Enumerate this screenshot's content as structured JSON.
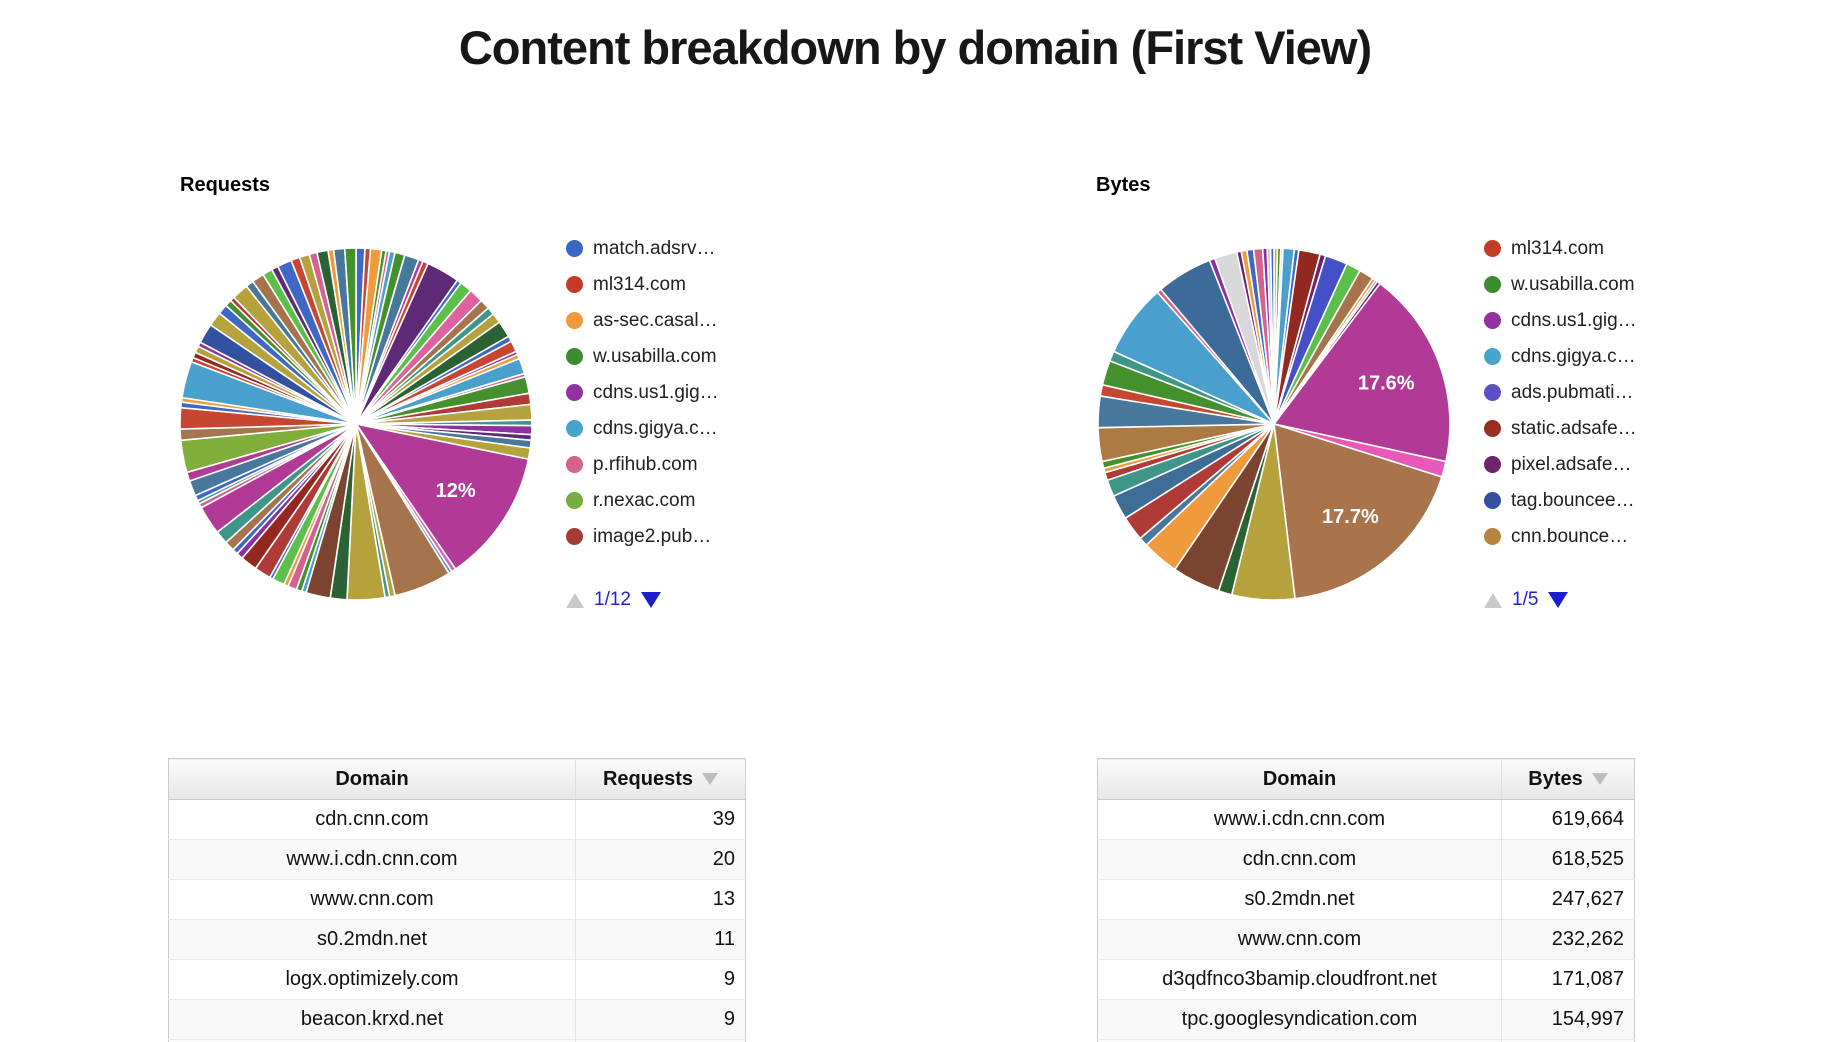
{
  "page": {
    "title": "Content breakdown by domain (First View)"
  },
  "requests_section": {
    "heading": "Requests",
    "legend_page": "1/12"
  },
  "bytes_section": {
    "heading": "Bytes",
    "legend_page": "1/5"
  },
  "chart_data": [
    {
      "type": "pie",
      "title": "Requests",
      "legend_position": "right",
      "legend_page": "1/12",
      "percent_labels": [
        "12%"
      ],
      "legend_entries": [
        {
          "label": "match.adsrv…",
          "color": "#3a66c6"
        },
        {
          "label": "ml314.com",
          "color": "#c43c28"
        },
        {
          "label": "as-sec.casal…",
          "color": "#f2993f"
        },
        {
          "label": "w.usabilla.com",
          "color": "#3b8c2f"
        },
        {
          "label": "cdns.us1.gig…",
          "color": "#9331a0"
        },
        {
          "label": "cdns.gigya.c…",
          "color": "#48a3cd"
        },
        {
          "label": "p.rfihub.com",
          "color": "#d5618e"
        },
        {
          "label": "r.nexac.com",
          "color": "#77ac3e"
        },
        {
          "label": "image2.pub…",
          "color": "#a33d33"
        }
      ],
      "slices": [
        [
          0.8,
          "#3f68c5"
        ],
        [
          0.5,
          "#c74632"
        ],
        [
          1.0,
          "#ef9a3d"
        ],
        [
          0.4,
          "#44902c"
        ],
        [
          0.3,
          "#d5628e"
        ],
        [
          0.5,
          "#49a0cd"
        ],
        [
          0.9,
          "#44902c"
        ],
        [
          1.3,
          "#47789c"
        ],
        [
          0.4,
          "#b23a97"
        ],
        [
          0.5,
          "#c74632"
        ],
        [
          3.0,
          "#5e2a77"
        ],
        [
          0.4,
          "#3f68c5"
        ],
        [
          1.1,
          "#5bbf4a"
        ],
        [
          1.3,
          "#df62a0"
        ],
        [
          0.9,
          "#a5734c"
        ],
        [
          0.7,
          "#3e9688"
        ],
        [
          0.9,
          "#b5a23c"
        ],
        [
          1.5,
          "#2a6234"
        ],
        [
          0.5,
          "#3f68c5"
        ],
        [
          1.0,
          "#c74632"
        ],
        [
          0.3,
          "#8e309e"
        ],
        [
          0.4,
          "#ef9a3d"
        ],
        [
          1.4,
          "#49a0cd"
        ],
        [
          0.3,
          "#d5628e"
        ],
        [
          1.5,
          "#44902c"
        ],
        [
          1.0,
          "#b03a35"
        ],
        [
          1.4,
          "#b5a23c"
        ],
        [
          0.5,
          "#3e9688"
        ],
        [
          0.8,
          "#8e309e"
        ],
        [
          0.5,
          "#5e2a77"
        ],
        [
          0.7,
          "#47789c"
        ],
        [
          1.0,
          "#b5a23c"
        ],
        [
          12.0,
          "#b23a97",
          "12%"
        ],
        [
          0.4,
          "#e35db5"
        ],
        [
          0.3,
          "#49a0cd"
        ],
        [
          5.2,
          "#a5734c"
        ],
        [
          0.5,
          "#b5a23c"
        ],
        [
          0.4,
          "#3e9688"
        ],
        [
          3.4,
          "#b5a23c"
        ],
        [
          1.5,
          "#2a6234"
        ],
        [
          2.2,
          "#7a4430"
        ],
        [
          0.4,
          "#49a0cd"
        ],
        [
          0.5,
          "#44902c"
        ],
        [
          0.8,
          "#d5628e"
        ],
        [
          0.4,
          "#ef9a3d"
        ],
        [
          1.1,
          "#5bbf4a"
        ],
        [
          0.3,
          "#3f68c5"
        ],
        [
          1.5,
          "#b03a35"
        ],
        [
          1.5,
          "#922820"
        ],
        [
          0.6,
          "#8e309e"
        ],
        [
          0.5,
          "#3f68c5"
        ],
        [
          0.9,
          "#a5734c"
        ],
        [
          1.2,
          "#3e9688"
        ],
        [
          2.6,
          "#b23a97"
        ],
        [
          0.4,
          "#d5628e"
        ],
        [
          0.3,
          "#3e9688"
        ],
        [
          0.5,
          "#3f68c5"
        ],
        [
          1.4,
          "#47789c"
        ],
        [
          0.8,
          "#b23a97"
        ],
        [
          2.9,
          "#7fae3b"
        ],
        [
          1.0,
          "#a5734c"
        ],
        [
          1.9,
          "#c74632"
        ],
        [
          0.5,
          "#3f68c5"
        ],
        [
          0.4,
          "#ef9a3d"
        ],
        [
          3.3,
          "#49a0cd"
        ],
        [
          0.4,
          "#c74632"
        ],
        [
          0.5,
          "#922820"
        ],
        [
          0.6,
          "#b5a23c"
        ],
        [
          0.4,
          "#8e309e"
        ],
        [
          1.8,
          "#32529f"
        ],
        [
          1.3,
          "#b5a23c"
        ],
        [
          0.9,
          "#3f68c5"
        ],
        [
          0.6,
          "#44902c"
        ],
        [
          0.4,
          "#b03a35"
        ],
        [
          1.5,
          "#b5a23c"
        ],
        [
          0.7,
          "#47789c"
        ],
        [
          1.1,
          "#a5734c"
        ],
        [
          0.9,
          "#5bbf4a"
        ],
        [
          0.6,
          "#5e2a77"
        ],
        [
          1.3,
          "#3f68c5"
        ],
        [
          0.8,
          "#c74632"
        ],
        [
          0.9,
          "#b5a23c"
        ],
        [
          0.7,
          "#d5628e"
        ],
        [
          1.0,
          "#2a6234"
        ],
        [
          0.5,
          "#ef9a3d"
        ],
        [
          1.0,
          "#47789c"
        ],
        [
          1.0,
          "#44902c"
        ]
      ]
    },
    {
      "type": "pie",
      "title": "Bytes",
      "legend_position": "right",
      "legend_page": "1/5",
      "percent_labels": [
        "17.6%",
        "17.7%"
      ],
      "legend_entries": [
        {
          "label": "ml314.com",
          "color": "#c43c28"
        },
        {
          "label": "w.usabilla.com",
          "color": "#3b8c2f"
        },
        {
          "label": "cdns.us1.gig…",
          "color": "#9331a0"
        },
        {
          "label": "cdns.gigya.c…",
          "color": "#48a3cd"
        },
        {
          "label": "ads.pubmati…",
          "color": "#5b50c8"
        },
        {
          "label": "static.adsafe…",
          "color": "#9c2d22"
        },
        {
          "label": "pixel.adsafe…",
          "color": "#6b2568"
        },
        {
          "label": "tag.bouncee…",
          "color": "#34509e"
        },
        {
          "label": "cnn.bounce…",
          "color": "#b5853f"
        }
      ],
      "slices": [
        [
          0.3,
          "#ef9a3d"
        ],
        [
          0.3,
          "#44902c"
        ],
        [
          0.2,
          "#d8d8d8"
        ],
        [
          1.0,
          "#49a0cd"
        ],
        [
          0.4,
          "#3f68c5"
        ],
        [
          1.9,
          "#922820"
        ],
        [
          0.5,
          "#6a2371"
        ],
        [
          2.0,
          "#4350c8"
        ],
        [
          1.3,
          "#5bbf4a"
        ],
        [
          1.3,
          "#a5734c"
        ],
        [
          0.3,
          "#ef9a3d"
        ],
        [
          0.2,
          "#47789c"
        ],
        [
          0.3,
          "#6a2371"
        ],
        [
          17.6,
          "#b23a97",
          "17.6%"
        ],
        [
          1.4,
          "#e858b8"
        ],
        [
          17.7,
          "#a9744b",
          "17.7%"
        ],
        [
          5.6,
          "#b5a23c"
        ],
        [
          1.2,
          "#2a6234"
        ],
        [
          4.3,
          "#7a4430"
        ],
        [
          3.3,
          "#ef9a3d"
        ],
        [
          0.8,
          "#47789c"
        ],
        [
          2.2,
          "#b03a35"
        ],
        [
          2.2,
          "#3e6e96"
        ],
        [
          1.5,
          "#3e9688"
        ],
        [
          0.7,
          "#b03a35"
        ],
        [
          0.4,
          "#ef9a3d"
        ],
        [
          0.6,
          "#44902c"
        ],
        [
          3.0,
          "#ab7a42"
        ],
        [
          2.8,
          "#47789c"
        ],
        [
          1.0,
          "#c74632"
        ],
        [
          2.2,
          "#44902c"
        ],
        [
          0.9,
          "#3e9688"
        ],
        [
          6.5,
          "#49a0cd"
        ],
        [
          0.4,
          "#d5628e"
        ],
        [
          5.0,
          "#3c6a99"
        ],
        [
          0.5,
          "#8e309e"
        ],
        [
          2.0,
          "#d8d8d8"
        ],
        [
          0.4,
          "#6a2371"
        ],
        [
          0.5,
          "#ef9a3d"
        ],
        [
          0.6,
          "#3f68c5"
        ],
        [
          0.8,
          "#d5628e"
        ],
        [
          0.4,
          "#8e309e"
        ],
        [
          0.3,
          "#c9c9c9"
        ],
        [
          0.3,
          "#3f68c5"
        ]
      ]
    },
    {
      "type": "table",
      "title": "Requests by domain",
      "headers": [
        "Domain",
        "Requests"
      ],
      "sorted_column": "Requests",
      "sort_direction": "desc",
      "rows": [
        [
          "cdn.cnn.com",
          "39"
        ],
        [
          "www.i.cdn.cnn.com",
          "20"
        ],
        [
          "www.cnn.com",
          "13"
        ],
        [
          "s0.2mdn.net",
          "11"
        ],
        [
          "logx.optimizely.com",
          "9"
        ],
        [
          "beacon.krxd.net",
          "9"
        ]
      ],
      "has_partial_next_row": true
    },
    {
      "type": "table",
      "title": "Bytes by domain",
      "headers": [
        "Domain",
        "Bytes"
      ],
      "sorted_column": "Bytes",
      "sort_direction": "desc",
      "rows": [
        [
          "www.i.cdn.cnn.com",
          "619,664"
        ],
        [
          "cdn.cnn.com",
          "618,525"
        ],
        [
          "s0.2mdn.net",
          "247,627"
        ],
        [
          "www.cnn.com",
          "232,262"
        ],
        [
          "d3qdfnco3bamip.cloudfront.net",
          "171,087"
        ],
        [
          "tpc.googlesyndication.com",
          "154,997"
        ]
      ],
      "has_partial_next_row": true
    }
  ]
}
